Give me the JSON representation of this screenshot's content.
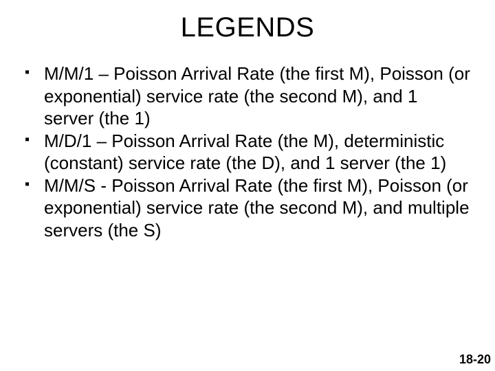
{
  "title": "LEGENDS",
  "bullets": [
    "M/M/1 – Poisson Arrival Rate (the first M), Poisson (or exponential) service rate (the second M), and 1 server (the 1)",
    "M/D/1 – Poisson Arrival Rate (the M), deterministic (constant) service rate (the D), and 1 server (the 1)",
    "M/M/S - Poisson Arrival Rate (the first M), Poisson (or exponential) service rate (the second M), and multiple servers (the S)"
  ],
  "page_number": "18-20"
}
